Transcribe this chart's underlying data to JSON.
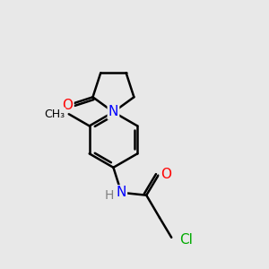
{
  "bg_color": "#e8e8e8",
  "bond_color": "#000000",
  "bond_width": 1.8,
  "atom_colors": {
    "N": "#0000ff",
    "O": "#ff0000",
    "Cl": "#00aa00",
    "C": "#000000",
    "H": "#808080"
  },
  "font_size": 10,
  "fig_size": [
    3.0,
    3.0
  ],
  "dpi": 100
}
